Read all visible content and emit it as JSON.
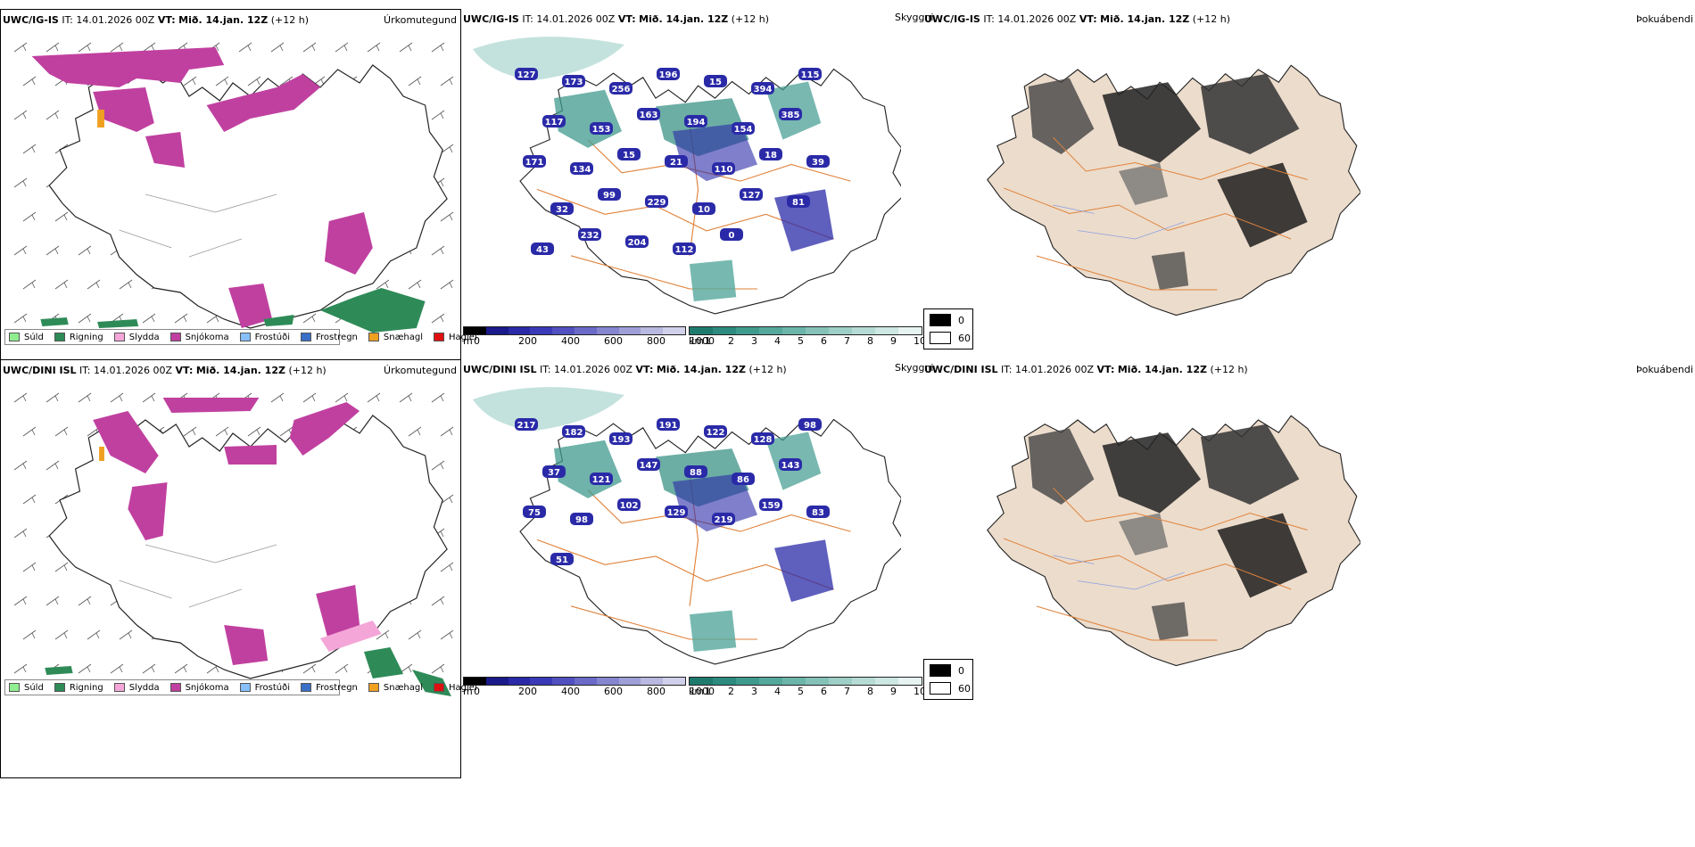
{
  "rows": [
    {
      "model": "UWC/IG-IS",
      "it_label": "IT:",
      "it_value": "14.01.2026 00Z",
      "vt_label": "VT:",
      "vt_value": "Mið. 14.jan. 12Z",
      "lead": "(+12 h)"
    },
    {
      "model": "UWC/DINI ISL",
      "it_label": "IT:",
      "it_value": "14.01.2026 00Z",
      "vt_label": "VT:",
      "vt_value": "Mið. 14.jan. 12Z",
      "lead": "(+12 h)"
    }
  ],
  "panel_titles": {
    "precip_type": "Úrkomutegund",
    "visibility": "Skyggni",
    "fog": "Þokuábendi"
  },
  "precip_legend": [
    {
      "label": "Súld",
      "color": "#90ee90"
    },
    {
      "label": "Rigning",
      "color": "#2e8b57"
    },
    {
      "label": "Slydda",
      "color": "#f4a6d8"
    },
    {
      "label": "Snjókoma",
      "color": "#c040a0"
    },
    {
      "label": "Frostúði",
      "color": "#87bfff"
    },
    {
      "label": "Frostregn",
      "color": "#3a6fc8"
    },
    {
      "label": "Snæhagl",
      "color": "#f0a020"
    },
    {
      "label": "Haglél",
      "color": "#e01010"
    }
  ],
  "ceiling_bar": {
    "unit": "m",
    "ticks": [
      "0",
      "200",
      "400",
      "600",
      "800",
      "1000"
    ],
    "colors": [
      "#000000",
      "#1a1a8a",
      "#2a2aa8",
      "#3a3ab8",
      "#5050c0",
      "#6a6ac8",
      "#8585d0",
      "#9f9fd8",
      "#b8b8e0",
      "#d0d0ea"
    ]
  },
  "visibility_bar": {
    "unit": "km",
    "ticks": [
      "1",
      "2",
      "3",
      "4",
      "5",
      "6",
      "7",
      "8",
      "9",
      "10"
    ],
    "colors": [
      "#1f7a6e",
      "#2d8a7e",
      "#3f9a8e",
      "#55a89c",
      "#6cb5aa",
      "#84c2b8",
      "#9dcfc6",
      "#b5dbd4",
      "#cde7e2",
      "#e6f3f1"
    ]
  },
  "fog_key": [
    {
      "label": "0",
      "color": "#000000"
    },
    {
      "label": "60",
      "color": "#ffffff"
    }
  ],
  "ceiling_labels": {
    "top": [
      "127",
      "173",
      "256",
      "196",
      "15",
      "394",
      "115",
      "117",
      "153",
      "163",
      "194",
      "154",
      "385",
      "171",
      "134",
      "15",
      "21",
      "110",
      "18",
      "39",
      "32",
      "99",
      "229",
      "10",
      "127",
      "81",
      "43",
      "232",
      "204",
      "112",
      "0"
    ],
    "bottom": [
      "217",
      "182",
      "193",
      "191",
      "122",
      "128",
      "98",
      "37",
      "121",
      "147",
      "88",
      "86",
      "143",
      "75",
      "98",
      "102",
      "129",
      "219",
      "159",
      "83",
      "51"
    ]
  }
}
